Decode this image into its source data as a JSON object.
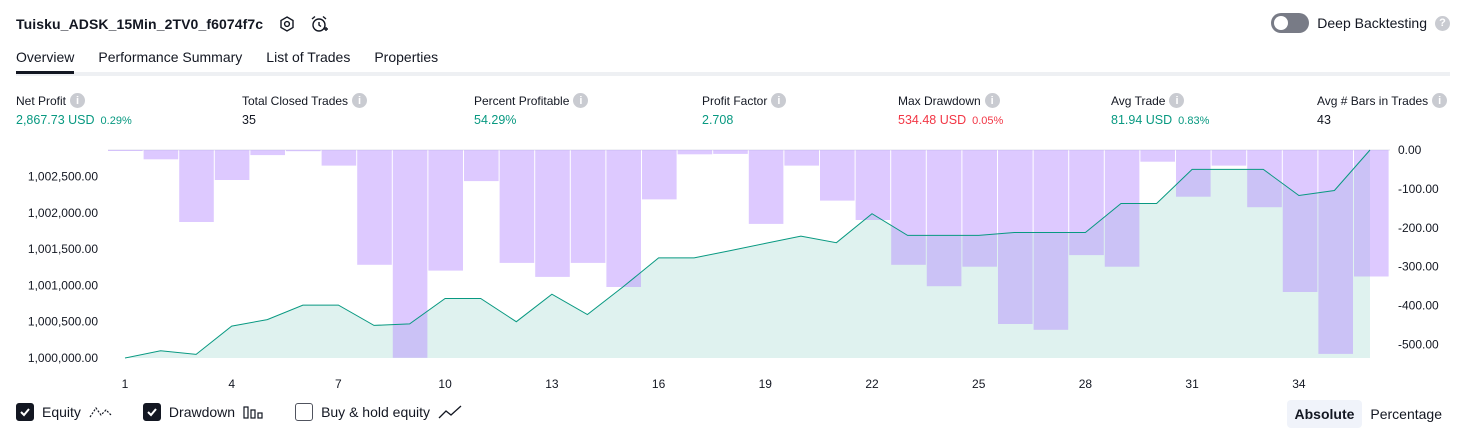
{
  "header": {
    "title": "Tuisku_ADSK_15Min_2TV0_f6074f7c",
    "settings_icon": "gear-icon",
    "alert_icon": "alarm-clock-icon"
  },
  "deep_backtesting": {
    "label": "Deep Backtesting",
    "enabled": false,
    "help": "?"
  },
  "tabs": [
    {
      "label": "Overview",
      "active": true
    },
    {
      "label": "Performance Summary",
      "active": false
    },
    {
      "label": "List of Trades",
      "active": false
    },
    {
      "label": "Properties",
      "active": false
    }
  ],
  "metrics": {
    "net_profit": {
      "label": "Net Profit",
      "value": "2,867.73 USD",
      "pct": "0.29%"
    },
    "total_closed_trades": {
      "label": "Total Closed Trades",
      "value": "35"
    },
    "percent_profitable": {
      "label": "Percent Profitable",
      "value": "54.29%"
    },
    "profit_factor": {
      "label": "Profit Factor",
      "value": "2.708"
    },
    "max_drawdown": {
      "label": "Max Drawdown",
      "value": "534.48 USD",
      "pct": "0.05%"
    },
    "avg_trade": {
      "label": "Avg Trade",
      "value": "81.94 USD",
      "pct": "0.83%"
    },
    "avg_bars": {
      "label": "Avg # Bars in Trades",
      "value": "43"
    }
  },
  "chart_data": {
    "type": "bar+area",
    "x_ticks": [
      "1",
      "4",
      "7",
      "10",
      "13",
      "16",
      "19",
      "22",
      "25",
      "28",
      "31",
      "34"
    ],
    "left_axis": {
      "ticks": [
        "1,000,000.00",
        "1,000,500.00",
        "1,001,000.00",
        "1,001,500.00",
        "1,002,000.00",
        "1,002,500.00"
      ],
      "range": [
        1000000,
        1002867.73
      ]
    },
    "right_axis": {
      "ticks": [
        "0.00",
        "-100.00",
        "-200.00",
        "-300.00",
        "-400.00",
        "-500.00"
      ],
      "range": [
        -534.48,
        0
      ]
    },
    "series": [
      {
        "name": "Equity",
        "color": "#089981",
        "x": [
          1,
          2,
          3,
          4,
          5,
          6,
          7,
          8,
          9,
          10,
          11,
          12,
          13,
          14,
          15,
          16,
          17,
          18,
          19,
          20,
          21,
          22,
          23,
          24,
          25,
          26,
          27,
          28,
          29,
          30,
          31,
          32,
          33,
          34,
          35,
          36
        ],
        "values": [
          1000000,
          1000100,
          1000050,
          1000440,
          1000530,
          1000730,
          1000730,
          1000450,
          1000470,
          1000820,
          1000820,
          1000500,
          1000880,
          1000600,
          1000980,
          1001380,
          1001380,
          1001480,
          1001580,
          1001680,
          1001590,
          1001990,
          1001690,
          1001690,
          1001690,
          1001730,
          1001730,
          1001730,
          1002130,
          1002130,
          1002600,
          1002600,
          1002600,
          1002240,
          1002310,
          1002868
        ]
      },
      {
        "name": "Drawdown",
        "color": "#b39ddb",
        "x": [
          1,
          2,
          3,
          4,
          5,
          6,
          7,
          8,
          9,
          10,
          11,
          12,
          13,
          14,
          15,
          16,
          17,
          18,
          19,
          20,
          21,
          22,
          23,
          24,
          25,
          26,
          27,
          28,
          29,
          30,
          31,
          32,
          33,
          34,
          35,
          36
        ],
        "values": [
          -2,
          -24,
          -185,
          -77,
          -13,
          -3,
          -40,
          -295,
          -534,
          -310,
          -80,
          -290,
          -326,
          -290,
          -352,
          -127,
          -11,
          -10,
          -190,
          -40,
          -130,
          -180,
          -295,
          -350,
          -300,
          -447,
          -462,
          -270,
          -300,
          -30,
          -120,
          -40,
          -147,
          -365,
          -524,
          -325
        ]
      }
    ]
  },
  "legend": {
    "equity": {
      "label": "Equity",
      "checked": true,
      "icon": "equity-line-icon"
    },
    "drawdown": {
      "label": "Drawdown",
      "checked": true,
      "icon": "drawdown-bars-icon"
    },
    "buy_hold": {
      "label": "Buy & hold equity",
      "checked": false,
      "icon": "buy-hold-line-icon"
    }
  },
  "scale": {
    "absolute": "Absolute",
    "percentage": "Percentage",
    "active": "absolute"
  }
}
